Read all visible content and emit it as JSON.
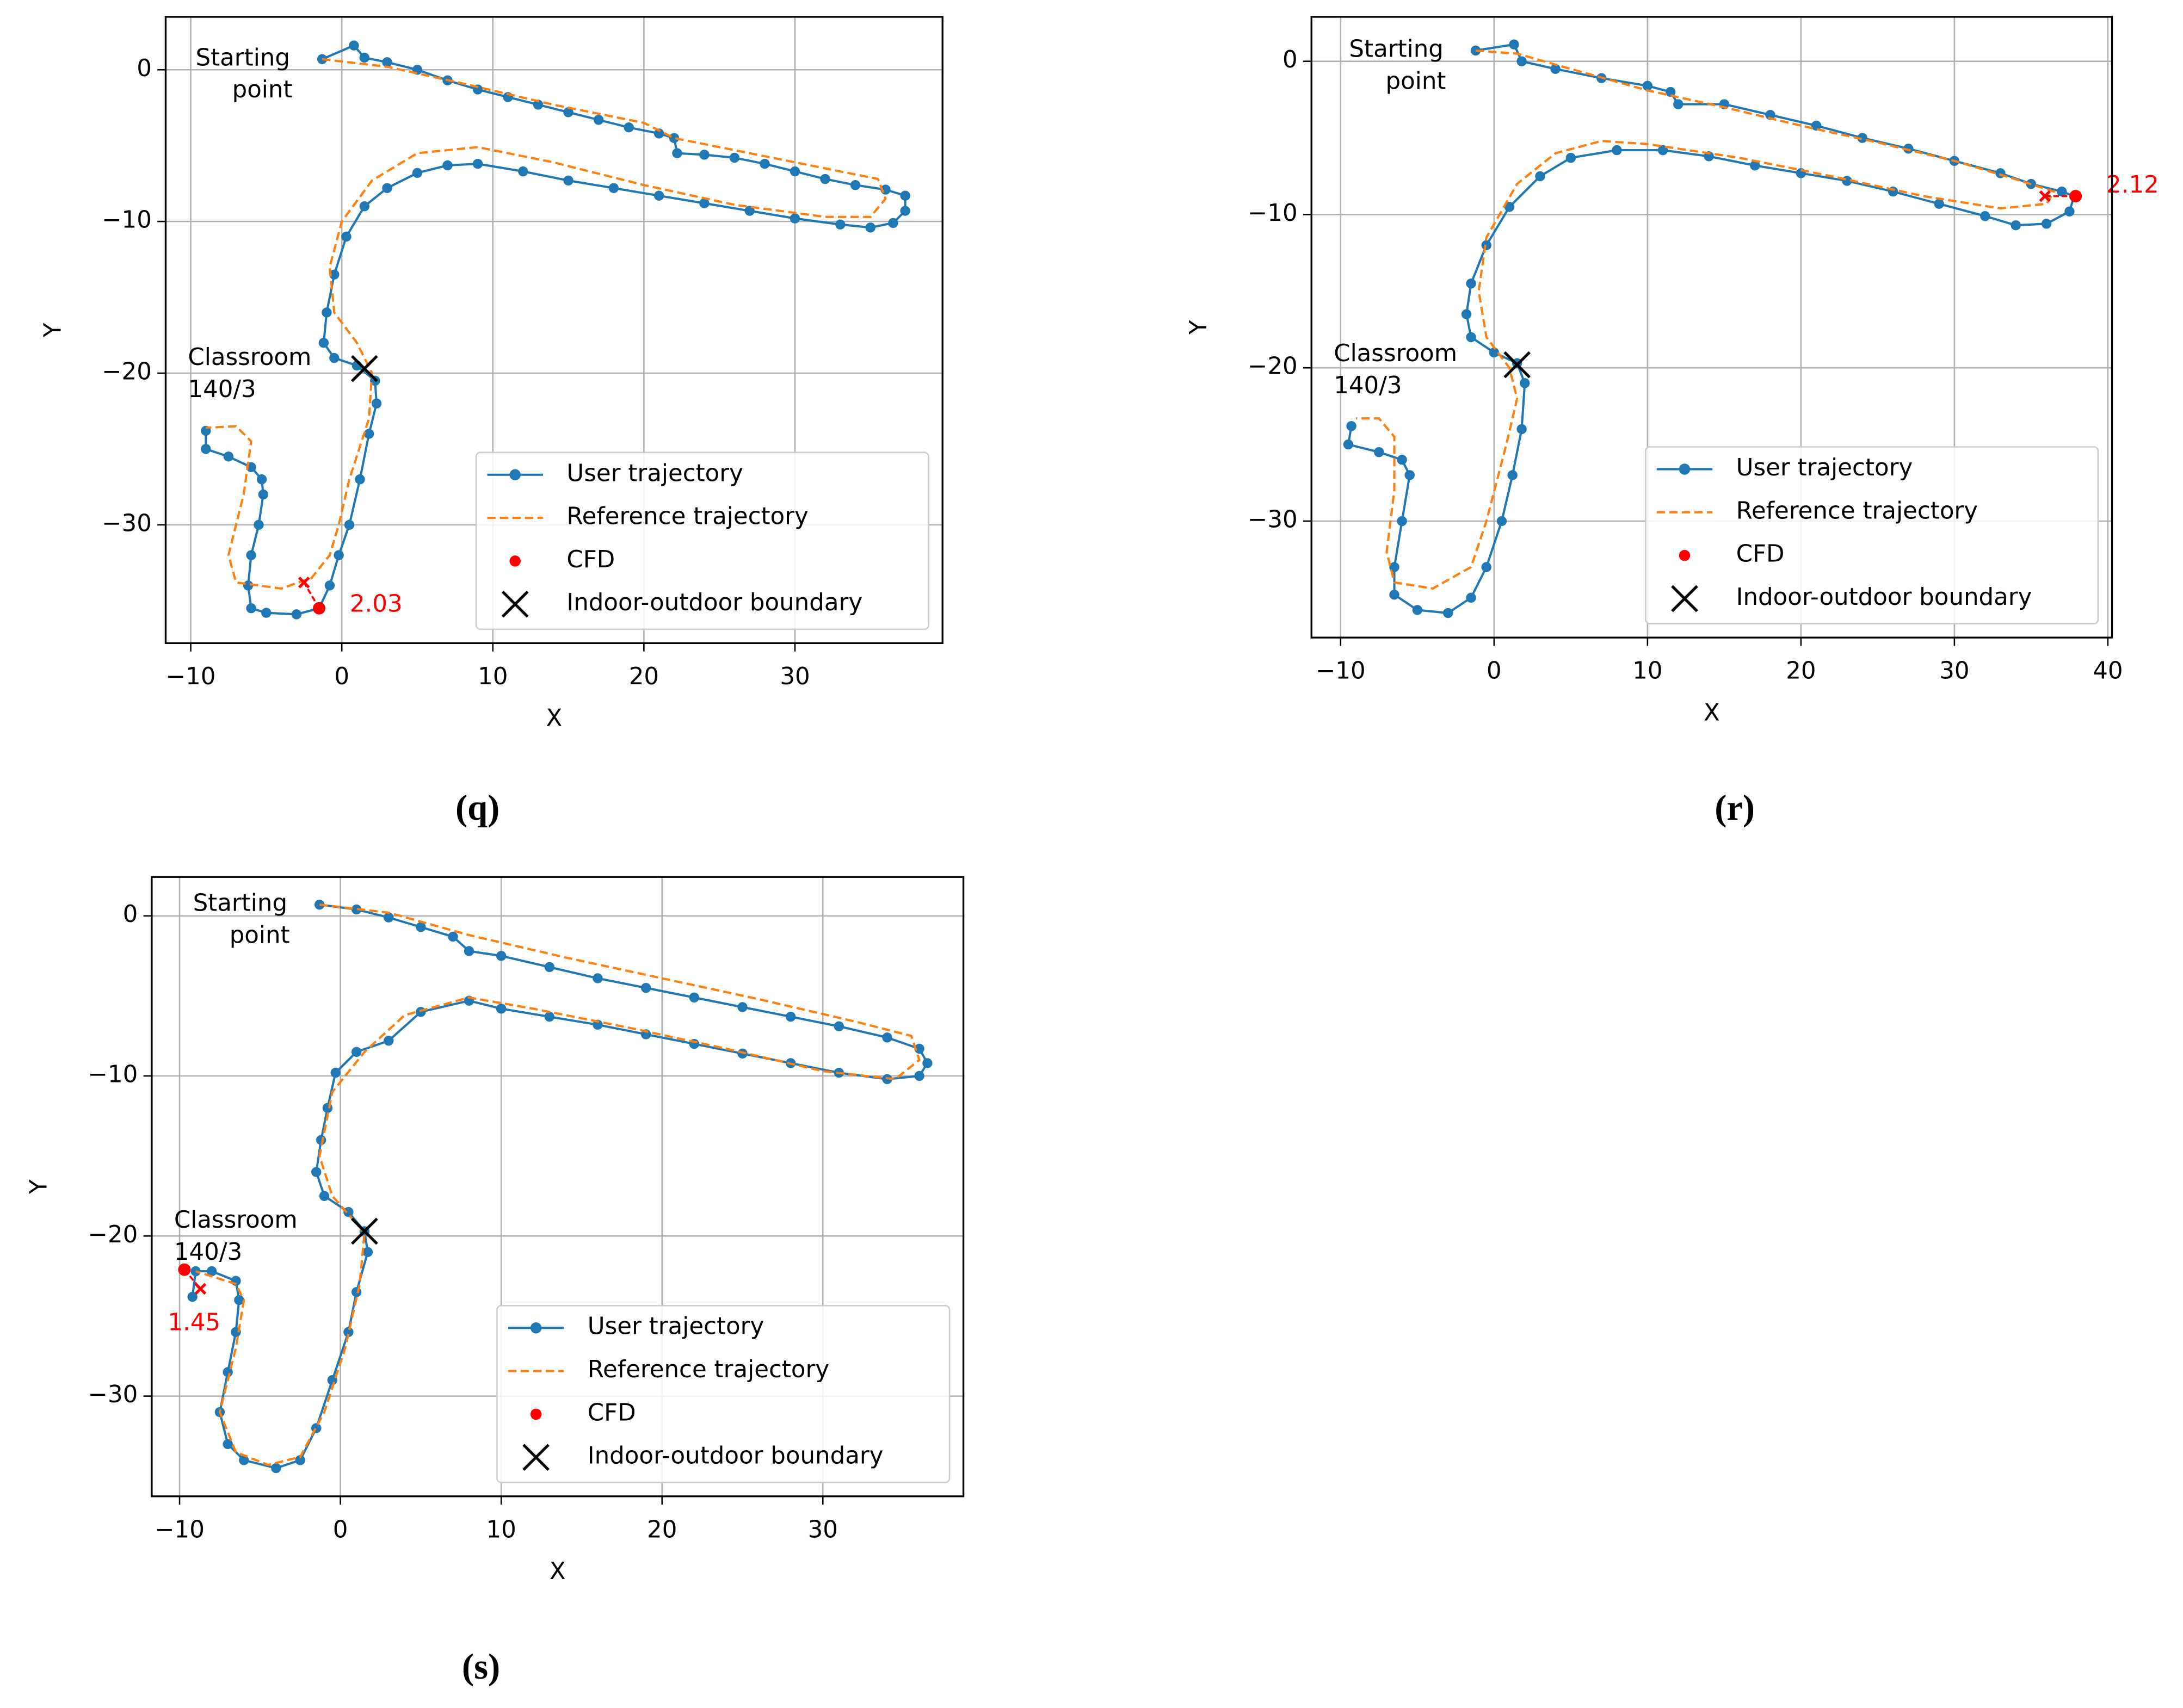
{
  "chart_data": [
    {
      "type": "line",
      "caption": "(q)",
      "xlabel": "X",
      "ylabel": "Y",
      "grid": true,
      "legend_loc": "lower right",
      "xlim": [
        -11.66,
        39.77
      ],
      "ylim": [
        -37.8,
        3.49
      ],
      "xticks": [
        {
          "value": -10,
          "label": "−10"
        },
        0,
        10,
        20,
        30
      ],
      "yticks": [
        {
          "value": -30,
          "label": "−30"
        },
        {
          "value": -20,
          "label": "−20"
        },
        {
          "value": -10,
          "label": "−10"
        },
        0
      ],
      "start_label": [
        "Starting",
        "point"
      ],
      "room_label": [
        "Classroom",
        "140/3"
      ],
      "series": [
        {
          "name": "User trajectory",
          "color": "#1f77b4",
          "linestyle": "solid",
          "marker": "o",
          "x": [
            -1.3,
            0.8,
            1.5,
            3,
            5,
            7,
            9,
            11,
            13,
            15,
            17,
            19,
            21,
            22,
            22.2,
            24,
            26,
            28,
            30,
            32,
            34,
            36,
            37.3,
            37.3,
            36.5,
            35,
            33,
            30,
            27,
            24,
            21,
            18,
            15,
            12,
            9,
            7,
            5,
            3,
            1.5,
            0.3,
            -0.5,
            -1,
            -1.2,
            -0.5,
            1,
            2.2,
            2.3,
            1.8,
            1.2,
            0.5,
            -0.2,
            -0.8,
            -1.5,
            -3,
            -5,
            -6,
            -6.2,
            -6,
            -5.5,
            -5.2,
            -5.3,
            -6,
            -7.5,
            -9,
            -9
          ],
          "y": [
            0.7,
            1.6,
            0.8,
            0.5,
            0,
            -0.7,
            -1.3,
            -1.8,
            -2.3,
            -2.8,
            -3.3,
            -3.8,
            -4.2,
            -4.5,
            -5.5,
            -5.6,
            -5.8,
            -6.2,
            -6.7,
            -7.2,
            -7.6,
            -7.9,
            -8.3,
            -9.3,
            -10.1,
            -10.4,
            -10.2,
            -9.8,
            -9.3,
            -8.8,
            -8.3,
            -7.8,
            -7.3,
            -6.7,
            -6.2,
            -6.3,
            -6.8,
            -7.8,
            -9,
            -11,
            -13.5,
            -16,
            -18,
            -19,
            -19.5,
            -20.5,
            -22,
            -24,
            -27,
            -30,
            -32,
            -34,
            -35.5,
            -35.9,
            -35.8,
            -35.5,
            -34,
            -32,
            -30,
            -28,
            -27,
            -26.2,
            -25.5,
            -25,
            -23.8
          ]
        },
        {
          "name": "Reference trajectory",
          "color": "#ff7f0e",
          "linestyle": "dashed",
          "marker": "none",
          "x": [
            -1.3,
            3,
            8,
            14,
            20,
            22,
            27,
            32,
            35.5,
            36,
            35,
            32,
            26,
            20,
            14,
            9,
            5,
            2,
            0,
            -0.8,
            -0.5,
            1,
            2,
            1.8,
            0.5,
            -0.2,
            -0.8,
            -2,
            -4,
            -7,
            -7.5,
            -6.5,
            -6,
            -7,
            -9
          ],
          "y": [
            0.7,
            0.2,
            -0.9,
            -2.3,
            -3.5,
            -4.5,
            -5.5,
            -6.5,
            -7.2,
            -8.5,
            -9.7,
            -9.7,
            -8.9,
            -7.6,
            -6.1,
            -5.1,
            -5.5,
            -7.3,
            -10,
            -13,
            -16,
            -18,
            -20,
            -23,
            -27,
            -30,
            -32,
            -33.5,
            -34.2,
            -33.8,
            -32,
            -28,
            -24.5,
            -23.5,
            -23.6
          ]
        },
        {
          "name": "CFD",
          "color": "#ff0000",
          "linestyle": "none",
          "marker": "o",
          "x": [
            -1.5
          ],
          "y": [
            -35.5
          ],
          "ref_x": [
            -2.5
          ],
          "ref_y": [
            -33.8
          ],
          "value_labels": [
            "2.03"
          ]
        },
        {
          "name": "Indoor-outdoor boundary",
          "color": "#000000",
          "linestyle": "none",
          "marker": "x",
          "x": [
            1.5
          ],
          "y": [
            -19.7
          ]
        }
      ]
    },
    {
      "type": "line",
      "caption": "(r)",
      "xlabel": "X",
      "ylabel": "Y",
      "grid": true,
      "legend_loc": "lower right",
      "xlim": [
        -11.9,
        40.27
      ],
      "ylim": [
        -37.6,
        2.9
      ],
      "xticks": [
        {
          "value": -10,
          "label": "−10"
        },
        0,
        10,
        20,
        30,
        40
      ],
      "yticks": [
        {
          "value": -30,
          "label": "−30"
        },
        {
          "value": -20,
          "label": "−20"
        },
        {
          "value": -10,
          "label": "−10"
        },
        0
      ],
      "start_label": [
        "Starting",
        "point"
      ],
      "room_label": [
        "Classroom",
        "140/3"
      ],
      "series": [
        {
          "name": "User trajectory",
          "color": "#1f77b4",
          "linestyle": "solid",
          "marker": "o",
          "x": [
            -1.2,
            1.3,
            1.8,
            4,
            7,
            10,
            11.5,
            12,
            15,
            18,
            21,
            24,
            27,
            30,
            33,
            35,
            37,
            37.8,
            37.5,
            36,
            34,
            32,
            29,
            26,
            23,
            20,
            17,
            14,
            11,
            8,
            5,
            3,
            1,
            -0.5,
            -1.5,
            -1.8,
            -1.5,
            0,
            1.5,
            2,
            1.8,
            1.2,
            0.5,
            -0.5,
            -1.5,
            -3,
            -5,
            -6.5,
            -6.5,
            -6,
            -5.5,
            -6,
            -7.5,
            -9.5,
            -9.3
          ],
          "y": [
            0.7,
            1.1,
            0,
            -0.5,
            -1.1,
            -1.6,
            -2,
            -2.8,
            -2.8,
            -3.5,
            -4.2,
            -5,
            -5.7,
            -6.5,
            -7.3,
            -8,
            -8.5,
            -8.8,
            -9.8,
            -10.6,
            -10.7,
            -10.1,
            -9.3,
            -8.5,
            -7.8,
            -7.3,
            -6.8,
            -6.2,
            -5.8,
            -5.8,
            -6.3,
            -7.5,
            -9.5,
            -12,
            -14.5,
            -16.5,
            -18,
            -19,
            -19.7,
            -21,
            -24,
            -27,
            -30,
            -33,
            -35,
            -36,
            -35.8,
            -34.8,
            -33,
            -30,
            -27,
            -26,
            -25.5,
            -25,
            -23.8
          ]
        },
        {
          "name": "Reference trajectory",
          "color": "#ff7f0e",
          "linestyle": "dashed",
          "marker": "none",
          "x": [
            -1.2,
            1.5,
            5,
            10,
            15,
            20,
            25,
            30,
            34,
            36.5,
            36,
            33,
            28,
            22,
            16,
            10,
            7,
            4,
            1.5,
            -0.5,
            -1,
            -0.5,
            1,
            1.5,
            0.8,
            -0.5,
            -1.5,
            -4,
            -6.5,
            -7,
            -6.5,
            -6.5,
            -7.5,
            -9
          ],
          "y": [
            0.7,
            0.5,
            -0.5,
            -1.9,
            -3,
            -4.2,
            -5.3,
            -6.5,
            -7.7,
            -8.5,
            -9.3,
            -9.6,
            -8.8,
            -7.5,
            -6.3,
            -5.4,
            -5.2,
            -6,
            -8,
            -11.5,
            -15,
            -18,
            -20,
            -22,
            -25,
            -30,
            -33,
            -34.4,
            -34,
            -32,
            -28,
            -24.5,
            -23.3,
            -23.3
          ]
        },
        {
          "name": "CFD",
          "color": "#ff0000",
          "linestyle": "none",
          "marker": "o",
          "x": [
            37.9
          ],
          "y": [
            -8.8
          ],
          "ref_x": [
            35.9
          ],
          "ref_y": [
            -8.8
          ],
          "value_labels": [
            "2.12"
          ]
        },
        {
          "name": "Indoor-outdoor boundary",
          "color": "#000000",
          "linestyle": "none",
          "marker": "x",
          "x": [
            1.5
          ],
          "y": [
            -19.8
          ]
        }
      ]
    },
    {
      "type": "line",
      "caption": "(s)",
      "xlabel": "X",
      "ylabel": "Y",
      "grid": true,
      "legend_loc": "lower right",
      "xlim": [
        -11.73,
        38.74
      ],
      "ylim": [
        -36.26,
        2.43
      ],
      "xticks": [
        {
          "value": -10,
          "label": "−10"
        },
        0,
        10,
        20,
        30
      ],
      "yticks": [
        {
          "value": -30,
          "label": "−30"
        },
        {
          "value": -20,
          "label": "−20"
        },
        {
          "value": -10,
          "label": "−10"
        },
        0
      ],
      "start_label": [
        "Starting",
        "point"
      ],
      "room_label": [
        "Classroom",
        "140/3"
      ],
      "series": [
        {
          "name": "User trajectory",
          "color": "#1f77b4",
          "linestyle": "solid",
          "marker": "o",
          "x": [
            -1.3,
            1,
            3,
            5,
            7,
            8,
            10,
            13,
            16,
            19,
            22,
            25,
            28,
            31,
            34,
            36,
            36.5,
            36,
            34,
            31,
            28,
            25,
            22,
            19,
            16,
            13,
            10,
            8,
            5,
            3,
            1,
            -0.3,
            -0.8,
            -1.2,
            -1.5,
            -1,
            0.5,
            1.5,
            1.7,
            1,
            0.5,
            -0.5,
            -1.5,
            -2.5,
            -4,
            -6,
            -7,
            -7.5,
            -7,
            -6.5,
            -6.3,
            -6.5,
            -8,
            -9,
            -9.2
          ],
          "y": [
            0.7,
            0.4,
            -0.1,
            -0.7,
            -1.3,
            -2.2,
            -2.5,
            -3.2,
            -3.9,
            -4.5,
            -5.1,
            -5.7,
            -6.3,
            -6.9,
            -7.6,
            -8.3,
            -9.2,
            -10,
            -10.2,
            -9.8,
            -9.2,
            -8.6,
            -8,
            -7.4,
            -6.8,
            -6.3,
            -5.8,
            -5.3,
            -6,
            -7.8,
            -8.5,
            -9.8,
            -12,
            -14,
            -16,
            -17.5,
            -18.5,
            -19.7,
            -21,
            -23.5,
            -26,
            -29,
            -32,
            -34,
            -34.5,
            -34,
            -33,
            -31,
            -28.5,
            -26,
            -24,
            -22.8,
            -22.2,
            -22.2,
            -23.8
          ]
        },
        {
          "name": "Reference trajectory",
          "color": "#ff7f0e",
          "linestyle": "dashed",
          "marker": "none",
          "x": [
            -1.3,
            3,
            8,
            14,
            20,
            26,
            32,
            35.5,
            36,
            34.5,
            30,
            24,
            18,
            12,
            8,
            4,
            1.5,
            -0.5,
            -1.3,
            -0.5,
            1.5,
            1.2,
            0.3,
            -1,
            -2.5,
            -4.5,
            -6.5,
            -7.5,
            -6.5,
            -6,
            -6.5,
            -9
          ],
          "y": [
            0.7,
            0.2,
            -1.2,
            -2.6,
            -3.9,
            -5.2,
            -6.6,
            -7.5,
            -9,
            -10.2,
            -9.7,
            -8.3,
            -7,
            -5.8,
            -5.1,
            -6.2,
            -8.5,
            -11,
            -15,
            -17.5,
            -19.8,
            -23,
            -27,
            -31,
            -33.8,
            -34.3,
            -33.5,
            -31,
            -27,
            -24,
            -23,
            -22.2
          ]
        },
        {
          "name": "CFD",
          "color": "#ff0000",
          "linestyle": "none",
          "marker": "o",
          "x": [
            -9.7
          ],
          "y": [
            -22.1
          ],
          "ref_x": [
            -8.7
          ],
          "ref_y": [
            -23.3
          ],
          "value_labels": [
            "1.45"
          ]
        },
        {
          "name": "Indoor-outdoor boundary",
          "color": "#000000",
          "linestyle": "none",
          "marker": "x",
          "x": [
            1.5
          ],
          "y": [
            -19.7
          ]
        }
      ]
    }
  ]
}
